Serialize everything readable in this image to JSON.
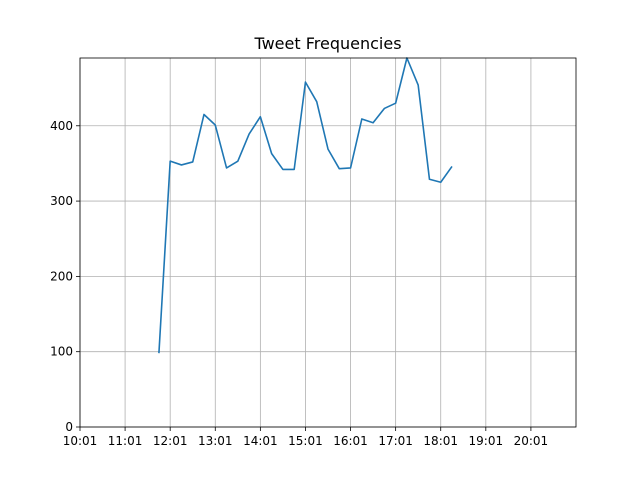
{
  "chart_data": {
    "type": "line",
    "title": "Tweet Frequencies",
    "xlabel": "",
    "ylabel": "",
    "x_ticks": [
      "10:01",
      "11:01",
      "12:01",
      "13:01",
      "14:01",
      "15:01",
      "16:01",
      "17:01",
      "18:01",
      "19:01",
      "20:01"
    ],
    "x_range": [
      "10:01",
      "21:01"
    ],
    "y_ticks": [
      0,
      100,
      200,
      300,
      400
    ],
    "ylim": [
      0,
      490
    ],
    "grid": true,
    "legend": "none",
    "series": [
      {
        "color": "#1f77b4",
        "x": [
          "11:46",
          "12:01",
          "12:16",
          "12:31",
          "12:46",
          "13:01",
          "13:16",
          "13:31",
          "13:46",
          "14:01",
          "14:16",
          "14:31",
          "14:46",
          "15:01",
          "15:16",
          "15:31",
          "15:46",
          "16:01",
          "16:16",
          "16:31",
          "16:46",
          "17:01",
          "17:16",
          "17:31",
          "17:46",
          "18:01",
          "18:16"
        ],
        "values": [
          98,
          353,
          348,
          352,
          415,
          401,
          344,
          353,
          389,
          412,
          363,
          342,
          342,
          458,
          432,
          369,
          343,
          344,
          409,
          404,
          423,
          430,
          490,
          454,
          329,
          325,
          346
        ]
      }
    ]
  }
}
